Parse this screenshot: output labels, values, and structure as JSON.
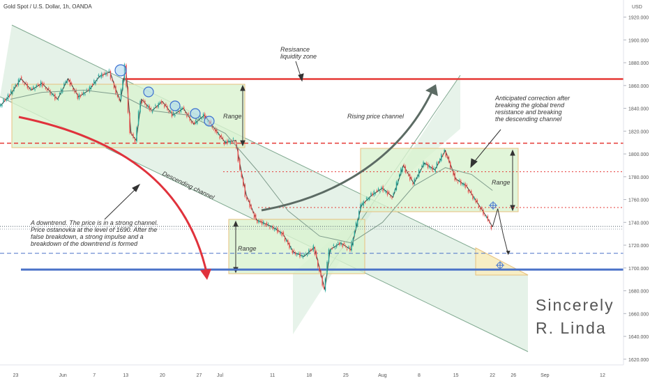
{
  "header": {
    "title": "Gold Spot / U.S. Dollar, 1h, OANDA",
    "currency": "USD"
  },
  "colors": {
    "candle_up": "#26a69a",
    "candle_down": "#ef5350",
    "resistance_red": "#e53935",
    "support_blue": "#4a72c8",
    "range_fill": "#d9f2cf",
    "range_border": "#e8c07d",
    "channel_fill": "#cfe8d6",
    "arrow_dark": "#5c6b64",
    "arrow_red": "#e0323c",
    "ma": "#7f9c8c",
    "text": "#333333",
    "label_red_bg": "#ffe0e0",
    "label_red_text": "#c62828"
  },
  "chart_data": {
    "type": "candlestick",
    "symbol": "Gold Spot / U.S. Dollar",
    "interval": "1h",
    "source": "OANDA",
    "ylim": [
      1615,
      1935
    ],
    "y_ticks": [
      "1920.000",
      "1900.000",
      "1880.000",
      "1860.000",
      "1840.000",
      "1820.000",
      "1800.000",
      "1780.000",
      "1760.000",
      "1740.000",
      "1720.000",
      "1700.000",
      "1680.000",
      "1660.000",
      "1640.000",
      "1620.000"
    ],
    "x_ticks": [
      "23",
      "Jun",
      "7",
      "13",
      "20",
      "27",
      "Jul",
      "11",
      "18",
      "25",
      "Aug",
      "8",
      "15",
      "22",
      "26",
      "Sep",
      "12"
    ],
    "x_tick_dates": [
      "2022-05-23",
      "2022-06-01",
      "2022-06-07",
      "2022-06-13",
      "2022-06-20",
      "2022-06-27",
      "2022-07-01",
      "2022-07-11",
      "2022-07-18",
      "2022-07-25",
      "2022-08-01",
      "2022-08-08",
      "2022-08-15",
      "2022-08-22",
      "2022-08-26",
      "2022-09-01",
      "2022-09-12"
    ],
    "xlim": [
      "2022-05-20",
      "2022-09-16"
    ],
    "price_path": [
      [
        "2022-05-20",
        1842
      ],
      [
        "2022-05-22",
        1852
      ],
      [
        "2022-05-24",
        1866
      ],
      [
        "2022-05-26",
        1856
      ],
      [
        "2022-05-28",
        1862
      ],
      [
        "2022-05-31",
        1848
      ],
      [
        "2022-06-02",
        1866
      ],
      [
        "2022-06-04",
        1850
      ],
      [
        "2022-06-06",
        1856
      ],
      [
        "2022-06-08",
        1868
      ],
      [
        "2022-06-10",
        1872
      ],
      [
        "2022-06-11",
        1858
      ],
      [
        "2022-06-12",
        1846
      ],
      [
        "2022-06-13",
        1877
      ],
      [
        "2022-06-14",
        1818
      ],
      [
        "2022-06-15",
        1812
      ],
      [
        "2022-06-16",
        1848
      ],
      [
        "2022-06-18",
        1838
      ],
      [
        "2022-06-20",
        1846
      ],
      [
        "2022-06-22",
        1834
      ],
      [
        "2022-06-24",
        1840
      ],
      [
        "2022-06-26",
        1826
      ],
      [
        "2022-06-28",
        1834
      ],
      [
        "2022-06-30",
        1822
      ],
      [
        "2022-07-02",
        1810
      ],
      [
        "2022-07-04",
        1812
      ],
      [
        "2022-07-05",
        1786
      ],
      [
        "2022-07-06",
        1764
      ],
      [
        "2022-07-08",
        1742
      ],
      [
        "2022-07-11",
        1736
      ],
      [
        "2022-07-13",
        1730
      ],
      [
        "2022-07-15",
        1714
      ],
      [
        "2022-07-17",
        1710
      ],
      [
        "2022-07-19",
        1718
      ],
      [
        "2022-07-21",
        1681
      ],
      [
        "2022-07-22",
        1716
      ],
      [
        "2022-07-24",
        1722
      ],
      [
        "2022-07-26",
        1716
      ],
      [
        "2022-07-28",
        1755
      ],
      [
        "2022-07-30",
        1764
      ],
      [
        "2022-08-01",
        1770
      ],
      [
        "2022-08-03",
        1762
      ],
      [
        "2022-08-05",
        1790
      ],
      [
        "2022-08-07",
        1774
      ],
      [
        "2022-08-09",
        1792
      ],
      [
        "2022-08-11",
        1786
      ],
      [
        "2022-08-13",
        1803
      ],
      [
        "2022-08-15",
        1778
      ],
      [
        "2022-08-17",
        1772
      ],
      [
        "2022-08-19",
        1758
      ],
      [
        "2022-08-21",
        1744
      ],
      [
        "2022-08-22",
        1736
      ]
    ],
    "projection_path": [
      [
        "2022-08-22",
        1736
      ],
      [
        "2022-08-23",
        1752
      ],
      [
        "2022-08-24",
        1730
      ],
      [
        "2022-08-25",
        1712
      ]
    ],
    "moving_average": [
      [
        "2022-05-22",
        1848
      ],
      [
        "2022-05-28",
        1854
      ],
      [
        "2022-06-05",
        1856
      ],
      [
        "2022-06-12",
        1852
      ],
      [
        "2022-06-18",
        1838
      ],
      [
        "2022-06-25",
        1834
      ],
      [
        "2022-07-02",
        1818
      ],
      [
        "2022-07-08",
        1786
      ],
      [
        "2022-07-14",
        1750
      ],
      [
        "2022-07-20",
        1728
      ],
      [
        "2022-07-26",
        1722
      ],
      [
        "2022-08-01",
        1740
      ],
      [
        "2022-08-07",
        1772
      ],
      [
        "2022-08-13",
        1788
      ],
      [
        "2022-08-18",
        1782
      ],
      [
        "2022-08-22",
        1768
      ]
    ],
    "horizontal_levels": [
      {
        "price": 1865.7,
        "label": "1865.700",
        "style": "solid-red"
      },
      {
        "price": 1809.4,
        "label": "1809.400",
        "style": "dashed-red"
      },
      {
        "price": 1784.38,
        "label": "1784.380",
        "style": "dotted-red"
      },
      {
        "price": 1753.0,
        "label": "1753.000",
        "style": "dotted-red"
      },
      {
        "price": 1736.415,
        "label": "1736.415",
        "style": "current-price"
      },
      {
        "price": 1734.05,
        "label": "1734.050",
        "style": "plain"
      },
      {
        "price": 1712.83,
        "label": "1712.830",
        "style": "dashed-blue"
      },
      {
        "price": 1698.56,
        "label": "1698.560",
        "style": "solid-blue"
      }
    ],
    "annotations": {
      "resistance_zone": "Resisance\nliquidity zone",
      "rising_channel": "Rising price channel",
      "descending_channel": "Descending channel",
      "range_1": "Range",
      "range_2": "Range",
      "range_3": "Range",
      "correction": "Anticipated correction after\nbreaking the global trend\nresistance and breaking\nthe descending channel",
      "downtrend": "A downtrend. The price is in a strong channel.\nPrice ostanovka at the level of 1690. After the\nfalse breakdown, a strong impulse and a\nbreakdown of the downtrend is formed"
    },
    "signature": [
      "Sincerely",
      "R. Linda"
    ]
  }
}
